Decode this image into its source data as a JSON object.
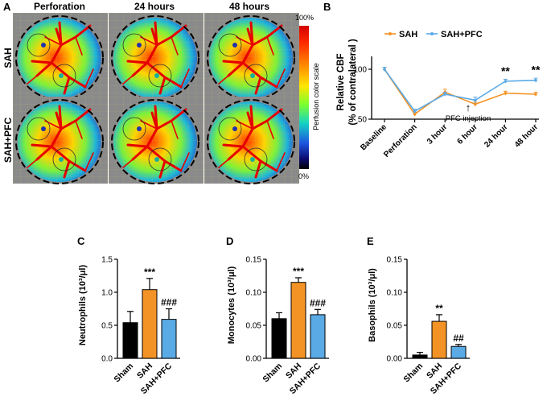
{
  "panels": {
    "A": {
      "letter": "A",
      "col_headers": [
        "Perforation",
        "24 hours",
        "48 hours"
      ],
      "row_labels": [
        "SAH",
        "SAH+PFC"
      ],
      "colorbar": {
        "label": "Perfusion color  scale",
        "top": "100%",
        "bottom": "0%",
        "colors": [
          "#d40000",
          "#ff2a00",
          "#ff8c00",
          "#ffe600",
          "#7cff2e",
          "#13d3c4",
          "#1d55e0",
          "#0a0a6e",
          "#000000"
        ]
      }
    },
    "B": {
      "letter": "B",
      "annotation": "PFC injection",
      "arrow": "↑"
    },
    "C": {
      "letter": "C"
    },
    "D": {
      "letter": "D"
    },
    "E": {
      "letter": "E"
    }
  },
  "colors": {
    "sah": "#f39325",
    "sah_pfc": "#5aaae6",
    "sham": "#000000"
  },
  "chart_data": [
    {
      "id": "B",
      "type": "line",
      "categories": [
        "Baseline",
        "Perforation",
        "3 hour",
        "6 hour",
        "24 hour",
        "48 hour"
      ],
      "series": [
        {
          "name": "SAH",
          "values": [
            100,
            55,
            77,
            65,
            76,
            75
          ],
          "errors": [
            2,
            2,
            3,
            2,
            2,
            2
          ]
        },
        {
          "name": "SAH+PFC",
          "values": [
            100,
            58,
            75,
            69,
            88,
            89
          ],
          "errors": [
            2,
            2,
            2,
            3,
            2,
            2
          ]
        }
      ],
      "ylabel_line1": "Relative CBF",
      "ylabel_line2": "(% of contralateral )",
      "ylim": [
        50,
        100
      ],
      "yticks": [
        "50",
        "100"
      ],
      "significance": [
        {
          "category": "24 hour",
          "text": "**"
        },
        {
          "category": "48 hour",
          "text": "**"
        }
      ]
    },
    {
      "id": "C",
      "type": "bar",
      "categories": [
        "Sham",
        "SAH",
        "SAH+PFC"
      ],
      "values": [
        0.54,
        1.04,
        0.59
      ],
      "errors": [
        0.17,
        0.17,
        0.16
      ],
      "significance": [
        "",
        "***",
        "###"
      ],
      "ylabel": "Neutrophils (10³/μl)",
      "ylim": [
        0,
        1.5
      ],
      "yticks": [
        "0.0",
        "0.5",
        "1.0",
        "1.5"
      ]
    },
    {
      "id": "D",
      "type": "bar",
      "categories": [
        "Sham",
        "SAH",
        "SAH+PFC"
      ],
      "values": [
        0.06,
        0.115,
        0.066
      ],
      "errors": [
        0.009,
        0.007,
        0.008
      ],
      "significance": [
        "",
        "***",
        "###"
      ],
      "ylabel": "Monocytes (10³/μl)",
      "ylim": [
        0,
        0.15
      ],
      "yticks": [
        "0.00",
        "0.05",
        "0.10",
        "0.15"
      ]
    },
    {
      "id": "E",
      "type": "bar",
      "categories": [
        "Sham",
        "SAH",
        "SAH+PFC"
      ],
      "values": [
        0.005,
        0.056,
        0.018
      ],
      "errors": [
        0.004,
        0.01,
        0.003
      ],
      "significance": [
        "",
        "**",
        "##"
      ],
      "ylabel": "Basophils (10³/μl)",
      "ylim": [
        0,
        0.15
      ],
      "yticks": [
        "0.00",
        "0.05",
        "0.10",
        "0.15"
      ]
    }
  ]
}
